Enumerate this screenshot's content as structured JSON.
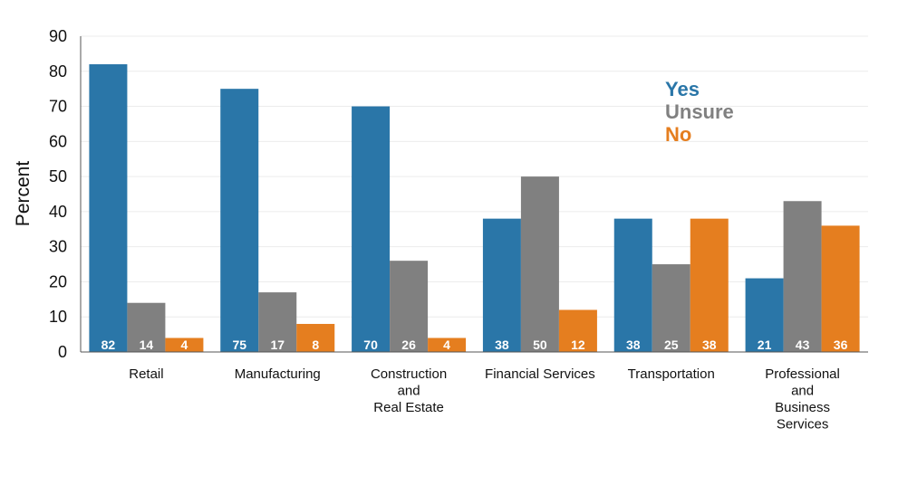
{
  "chart_data": {
    "type": "bar",
    "ylabel": "Percent",
    "xlabel": "",
    "ylim": [
      0,
      90
    ],
    "yticks": [
      0,
      10,
      20,
      30,
      40,
      50,
      60,
      70,
      80,
      90
    ],
    "grid": true,
    "legend_position": "top-right",
    "categories": [
      [
        "Retail"
      ],
      [
        "Manufacturing"
      ],
      [
        "Construction",
        "and",
        "Real Estate"
      ],
      [
        "Financial Services"
      ],
      [
        "Transportation"
      ],
      [
        "Professional",
        "and",
        "Business",
        "Services"
      ]
    ],
    "series": [
      {
        "name": "Yes",
        "color": "#2a76a8",
        "values": [
          82,
          75,
          70,
          38,
          38,
          21
        ]
      },
      {
        "name": "Unsure",
        "color": "#808080",
        "values": [
          14,
          17,
          26,
          50,
          25,
          43
        ]
      },
      {
        "name": "No",
        "color": "#e57e1f",
        "values": [
          4,
          8,
          4,
          12,
          38,
          36
        ]
      }
    ]
  }
}
